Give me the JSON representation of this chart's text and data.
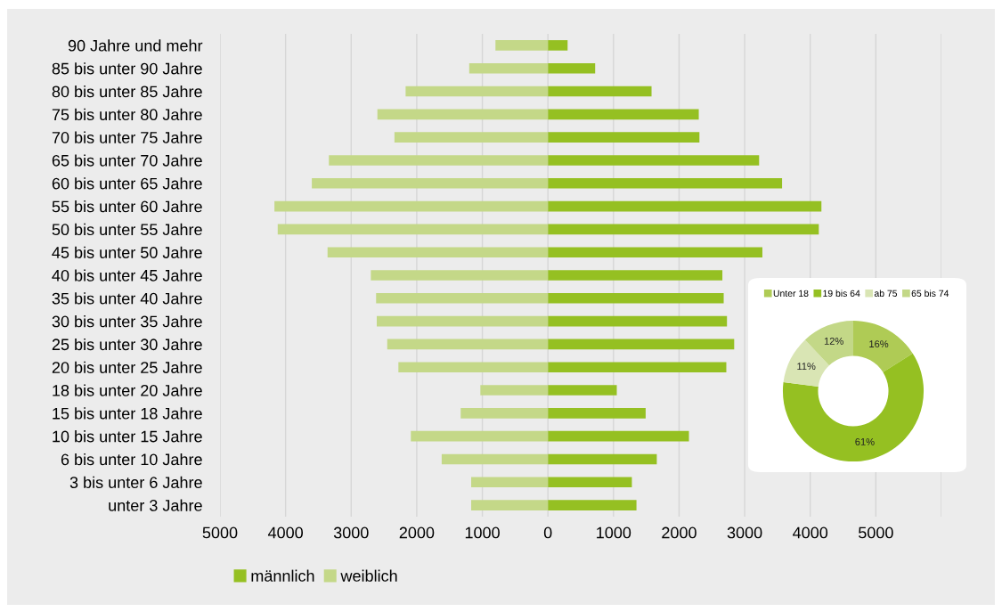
{
  "chart_data": [
    {
      "type": "bar",
      "orientation": "horizontal",
      "stacked": true,
      "categories": [
        "90 Jahre und mehr",
        "85 bis unter 90 Jahre",
        "80 bis unter 85 Jahre",
        "75 bis unter 80 Jahre",
        "70 bis unter 75 Jahre",
        "65 bis unter 70 Jahre",
        "60 bis unter 65 Jahre",
        "55 bis unter 60 Jahre",
        "50 bis unter 55 Jahre",
        "45 bis unter 50 Jahre",
        "40 bis unter 45 Jahre",
        "35 bis unter 40 Jahre",
        "30 bis unter 35 Jahre",
        "25 bis unter 30 Jahre",
        "20 bis unter 25 Jahre",
        "18 bis unter 20 Jahre",
        "15 bis unter 18 Jahre",
        "10 bis unter 15 Jahre",
        "6 bis unter 10 Jahre",
        "3 bis unter 6 Jahre",
        "unter 3 Jahre"
      ],
      "series": [
        {
          "name": "männlich",
          "color": "#95c022",
          "values": [
            300,
            720,
            1580,
            2300,
            2310,
            3220,
            3570,
            4170,
            4130,
            3270,
            2660,
            2680,
            2730,
            2840,
            2720,
            1050,
            1490,
            2150,
            1660,
            1280,
            1350
          ]
        },
        {
          "name": "weiblich",
          "color": "#c4d888",
          "values": [
            -800,
            -1200,
            -2170,
            -2600,
            -2340,
            -3340,
            -3600,
            -4170,
            -4120,
            -3360,
            -2700,
            -2620,
            -2610,
            -2450,
            -2280,
            -1030,
            -1330,
            -2090,
            -1620,
            -1170,
            -1170
          ]
        }
      ],
      "xlim": [
        -5000,
        6000
      ],
      "xticks": [
        {
          "value": -5000,
          "label": "5000"
        },
        {
          "value": -4000,
          "label": "4000"
        },
        {
          "value": -3000,
          "label": "3000"
        },
        {
          "value": -2000,
          "label": "2000"
        },
        {
          "value": -1000,
          "label": "1000"
        },
        0,
        1000,
        2000,
        3000,
        4000,
        5000,
        {
          "value": 6000,
          "label": null
        }
      ],
      "grid": "x",
      "legend": "bottom"
    },
    {
      "type": "donut",
      "categories": [
        "Unter 18",
        "19 bis 64",
        "ab 75",
        "65 bis 74"
      ],
      "values": [
        16,
        61,
        11,
        12
      ],
      "colors": [
        "#afcb55",
        "#95c022",
        "#d9e5b4",
        "#c3d887"
      ],
      "value_labels": [
        "16%",
        "61%",
        "11%",
        "12%"
      ],
      "legend": "top"
    }
  ]
}
